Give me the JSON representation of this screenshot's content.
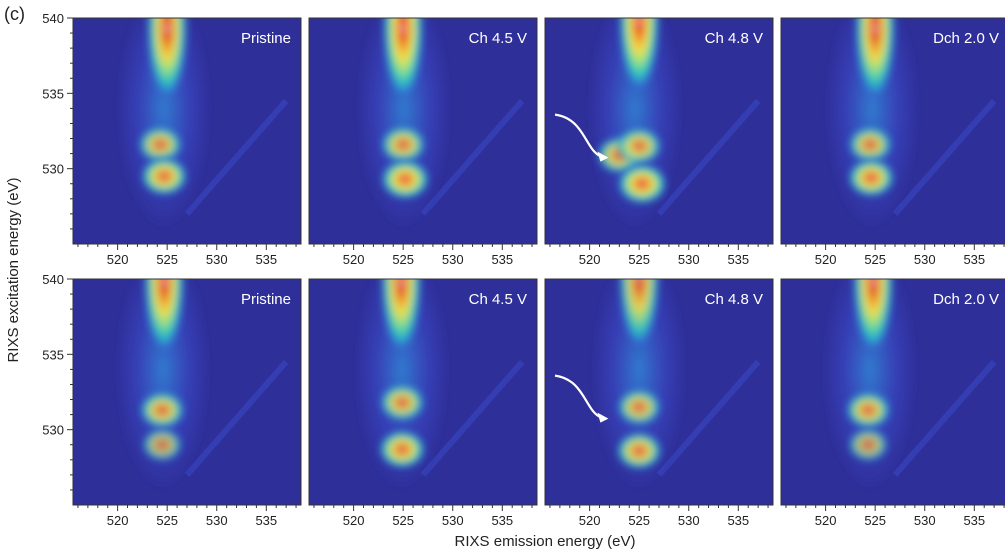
{
  "figure": {
    "panel_letter": "(c)",
    "xlabel": "RIXS emission energy (eV)",
    "ylabel": "RIXS excitation energy (eV)",
    "x_ticks": [
      520,
      525,
      530,
      535
    ],
    "y_ticks": [
      530,
      535,
      540
    ],
    "rows": 2,
    "cols": 4,
    "panel_titles": [
      "Pristine",
      "Ch 4.5 V",
      "Ch 4.8 V",
      "Dch 2.0 V"
    ],
    "panel_title_color": "#ffffff",
    "arrow_panels": [
      [
        0,
        2
      ],
      [
        1,
        2
      ]
    ],
    "colormap": [
      "#2b2a8e",
      "#3a48c6",
      "#2f86d6",
      "#2bc3c0",
      "#8ee08a",
      "#f2e24a",
      "#f39a2b",
      "#e0302a",
      "#ffffff"
    ],
    "background_color": "#2f2f9a"
  },
  "chart_data": {
    "type": "heatmap",
    "xlabel": "RIXS emission energy (eV)",
    "ylabel": "RIXS excitation energy (eV)",
    "xlim": [
      515.5,
      538.5
    ],
    "ylim": [
      525,
      540
    ],
    "x_ticks": [
      520,
      525,
      530,
      535
    ],
    "y_ticks": [
      530,
      535,
      540
    ],
    "panels": [
      {
        "row": 0,
        "title": "Pristine",
        "features": [
          {
            "x": 525,
            "y": 538,
            "intensity": 0.85
          },
          {
            "x": 524.3,
            "y": 531.6,
            "intensity": 0.7
          },
          {
            "x": 524.7,
            "y": 529.5,
            "intensity": 0.85
          }
        ]
      },
      {
        "row": 0,
        "title": "Ch 4.5 V",
        "features": [
          {
            "x": 525,
            "y": 538,
            "intensity": 0.9
          },
          {
            "x": 525,
            "y": 531.6,
            "intensity": 0.75
          },
          {
            "x": 525.2,
            "y": 529.3,
            "intensity": 0.95
          }
        ]
      },
      {
        "row": 0,
        "title": "Ch 4.8 V",
        "features": [
          {
            "x": 525,
            "y": 538.5,
            "intensity": 1.0
          },
          {
            "x": 523,
            "y": 530.9,
            "intensity": 0.75
          },
          {
            "x": 525,
            "y": 531.5,
            "intensity": 0.75
          },
          {
            "x": 525.3,
            "y": 529,
            "intensity": 1.0
          }
        ]
      },
      {
        "row": 0,
        "title": "Dch 2.0 V",
        "features": [
          {
            "x": 525,
            "y": 538,
            "intensity": 0.85
          },
          {
            "x": 524.5,
            "y": 531.6,
            "intensity": 0.7
          },
          {
            "x": 524.6,
            "y": 529.4,
            "intensity": 0.85
          }
        ]
      },
      {
        "row": 1,
        "title": "Pristine",
        "features": [
          {
            "x": 524.7,
            "y": 538.5,
            "intensity": 0.85
          },
          {
            "x": 524.5,
            "y": 531.3,
            "intensity": 0.75
          },
          {
            "x": 524.5,
            "y": 529.0,
            "intensity": 0.5
          }
        ]
      },
      {
        "row": 1,
        "title": "Ch 4.5 V",
        "features": [
          {
            "x": 524.8,
            "y": 538.5,
            "intensity": 0.85
          },
          {
            "x": 524.9,
            "y": 531.8,
            "intensity": 0.75
          },
          {
            "x": 524.9,
            "y": 528.7,
            "intensity": 0.85
          }
        ]
      },
      {
        "row": 1,
        "title": "Ch 4.8 V",
        "features": [
          {
            "x": 525,
            "y": 538.8,
            "intensity": 0.75
          },
          {
            "x": 525,
            "y": 531.5,
            "intensity": 0.7
          },
          {
            "x": 525,
            "y": 528.6,
            "intensity": 0.8
          }
        ]
      },
      {
        "row": 1,
        "title": "Dch 2.0 V",
        "features": [
          {
            "x": 524.8,
            "y": 538.5,
            "intensity": 0.85
          },
          {
            "x": 524.3,
            "y": 531.3,
            "intensity": 0.75
          },
          {
            "x": 524.3,
            "y": 529.0,
            "intensity": 0.5
          }
        ]
      }
    ]
  }
}
